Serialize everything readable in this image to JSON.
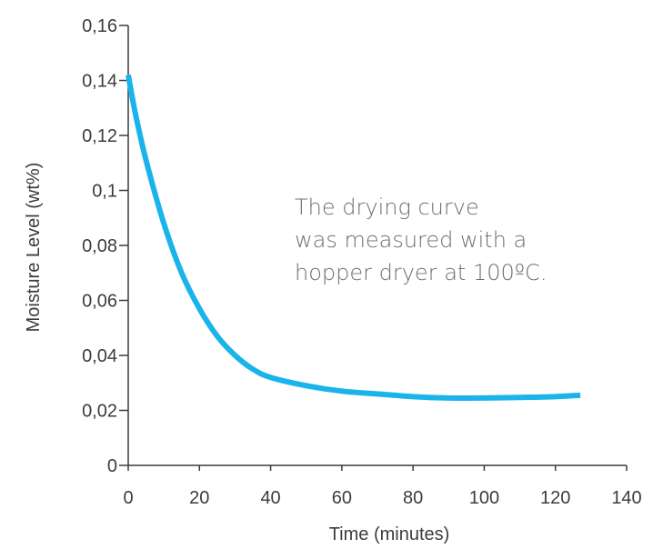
{
  "chart_data": {
    "type": "line",
    "xlabel": "Time (minutes)",
    "ylabel": "Moisture Level (wt%)",
    "xlim": [
      0,
      140
    ],
    "ylim": [
      0,
      0.16
    ],
    "x_ticks": [
      "0",
      "20",
      "40",
      "60",
      "80",
      "100",
      "120",
      "140"
    ],
    "y_ticks": [
      "0",
      "0,02",
      "0,04",
      "0,06",
      "0,08",
      "0,1",
      "0,12",
      "0,14",
      "0,16"
    ],
    "grid": false,
    "series": [
      {
        "color": "#1ab4ea",
        "x": [
          0,
          2,
          5,
          10,
          15,
          20,
          25,
          30,
          35,
          40,
          50,
          60,
          70,
          80,
          90,
          100,
          110,
          120,
          127
        ],
        "y": [
          0.142,
          0.128,
          0.111,
          0.088,
          0.07,
          0.057,
          0.047,
          0.04,
          0.035,
          0.032,
          0.029,
          0.027,
          0.026,
          0.025,
          0.0245,
          0.0245,
          0.0247,
          0.025,
          0.0255
        ]
      }
    ],
    "annotations": [
      "The drying curve",
      "was measured with a",
      "hopper dryer at 100ºC."
    ]
  }
}
